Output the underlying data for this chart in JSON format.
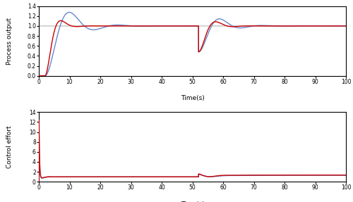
{
  "subplot1_ylabel": "Process output",
  "subplot2_ylabel": "Control effort",
  "xlabel": "Time(s)",
  "xlim": [
    0,
    100
  ],
  "ylim1": [
    0,
    1.4
  ],
  "ylim2": [
    0,
    14
  ],
  "yticks1": [
    0,
    0.2,
    0.4,
    0.6,
    0.8,
    1.0,
    1.2,
    1.4
  ],
  "yticks2": [
    0,
    2,
    4,
    6,
    8,
    10,
    12,
    14
  ],
  "xticks": [
    0,
    10,
    20,
    30,
    40,
    50,
    60,
    70,
    80,
    90,
    100
  ],
  "red_color": "#cc0000",
  "blue_color": "#6688cc",
  "setpoint_color": "#aaaaaa",
  "linewidth_main": 1.0,
  "linewidth_setpoint": 0.7,
  "background_color": "#ffffff",
  "disturbance_time": 52
}
